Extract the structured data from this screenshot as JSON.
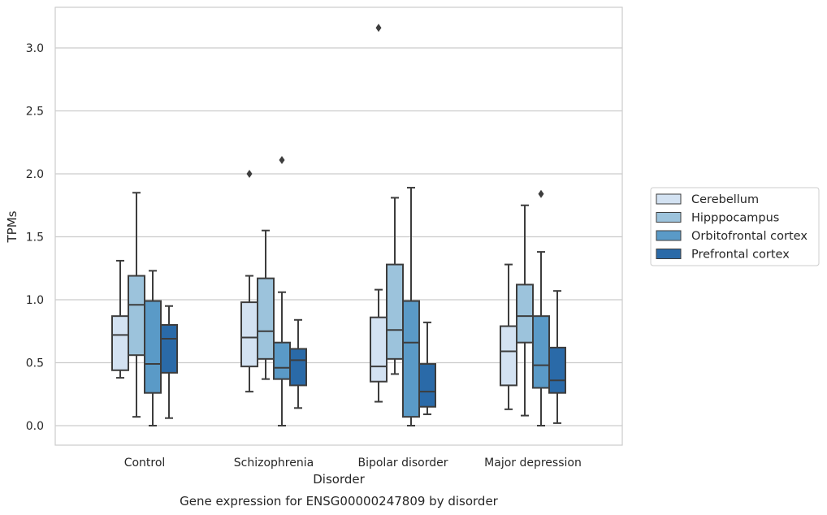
{
  "chart_data": {
    "type": "box",
    "xlabel": "Disorder",
    "ylabel": "TPMs",
    "caption": "Gene expression for ENSG00000247809 by disorder",
    "categories": [
      "Control",
      "Schizophrenia",
      "Bipolar disorder",
      "Major depression"
    ],
    "ylim": [
      -0.15,
      3.3
    ],
    "yticks": [
      0.0,
      0.5,
      1.0,
      1.5,
      2.0,
      2.5,
      3.0
    ],
    "ytick_labels": [
      "0.0",
      "0.5",
      "1.0",
      "1.5",
      "2.0",
      "2.5",
      "3.0"
    ],
    "grid": "horizontal",
    "legend_position": "right, outside plot",
    "series": [
      {
        "name": "Cerebellum",
        "color": "#d3e2f2",
        "boxes": [
          {
            "whisker_low": 0.38,
            "q1": 0.44,
            "median": 0.72,
            "q3": 0.87,
            "whisker_high": 1.31,
            "outliers": []
          },
          {
            "whisker_low": 0.27,
            "q1": 0.47,
            "median": 0.7,
            "q3": 0.98,
            "whisker_high": 1.19,
            "outliers": [
              2.0
            ]
          },
          {
            "whisker_low": 0.19,
            "q1": 0.35,
            "median": 0.47,
            "q3": 0.86,
            "whisker_high": 1.08,
            "outliers": [
              3.16
            ]
          },
          {
            "whisker_low": 0.13,
            "q1": 0.32,
            "median": 0.59,
            "q3": 0.79,
            "whisker_high": 1.28,
            "outliers": []
          }
        ]
      },
      {
        "name": "Hipppocampus",
        "color": "#9cc3dc",
        "boxes": [
          {
            "whisker_low": 0.07,
            "q1": 0.56,
            "median": 0.96,
            "q3": 1.19,
            "whisker_high": 1.85,
            "outliers": []
          },
          {
            "whisker_low": 0.37,
            "q1": 0.53,
            "median": 0.75,
            "q3": 1.17,
            "whisker_high": 1.55,
            "outliers": []
          },
          {
            "whisker_low": 0.41,
            "q1": 0.53,
            "median": 0.76,
            "q3": 1.28,
            "whisker_high": 1.81,
            "outliers": []
          },
          {
            "whisker_low": 0.08,
            "q1": 0.66,
            "median": 0.87,
            "q3": 1.12,
            "whisker_high": 1.75,
            "outliers": []
          }
        ]
      },
      {
        "name": "Orbitofrontal cortex",
        "color": "#5a9ac7",
        "boxes": [
          {
            "whisker_low": 0.0,
            "q1": 0.26,
            "median": 0.49,
            "q3": 0.99,
            "whisker_high": 1.23,
            "outliers": []
          },
          {
            "whisker_low": 0.0,
            "q1": 0.37,
            "median": 0.46,
            "q3": 0.66,
            "whisker_high": 1.06,
            "outliers": [
              2.11
            ]
          },
          {
            "whisker_low": 0.0,
            "q1": 0.07,
            "median": 0.66,
            "q3": 0.99,
            "whisker_high": 1.89,
            "outliers": []
          },
          {
            "whisker_low": 0.0,
            "q1": 0.3,
            "median": 0.48,
            "q3": 0.87,
            "whisker_high": 1.38,
            "outliers": [
              1.84
            ]
          }
        ]
      },
      {
        "name": "Prefrontal cortex",
        "color": "#2a6aa8",
        "boxes": [
          {
            "whisker_low": 0.06,
            "q1": 0.42,
            "median": 0.69,
            "q3": 0.8,
            "whisker_high": 0.95,
            "outliers": []
          },
          {
            "whisker_low": 0.14,
            "q1": 0.32,
            "median": 0.52,
            "q3": 0.61,
            "whisker_high": 0.84,
            "outliers": []
          },
          {
            "whisker_low": 0.09,
            "q1": 0.15,
            "median": 0.27,
            "q3": 0.49,
            "whisker_high": 0.82,
            "outliers": []
          },
          {
            "whisker_low": 0.02,
            "q1": 0.26,
            "median": 0.36,
            "q3": 0.62,
            "whisker_high": 1.07,
            "outliers": []
          }
        ]
      }
    ]
  }
}
